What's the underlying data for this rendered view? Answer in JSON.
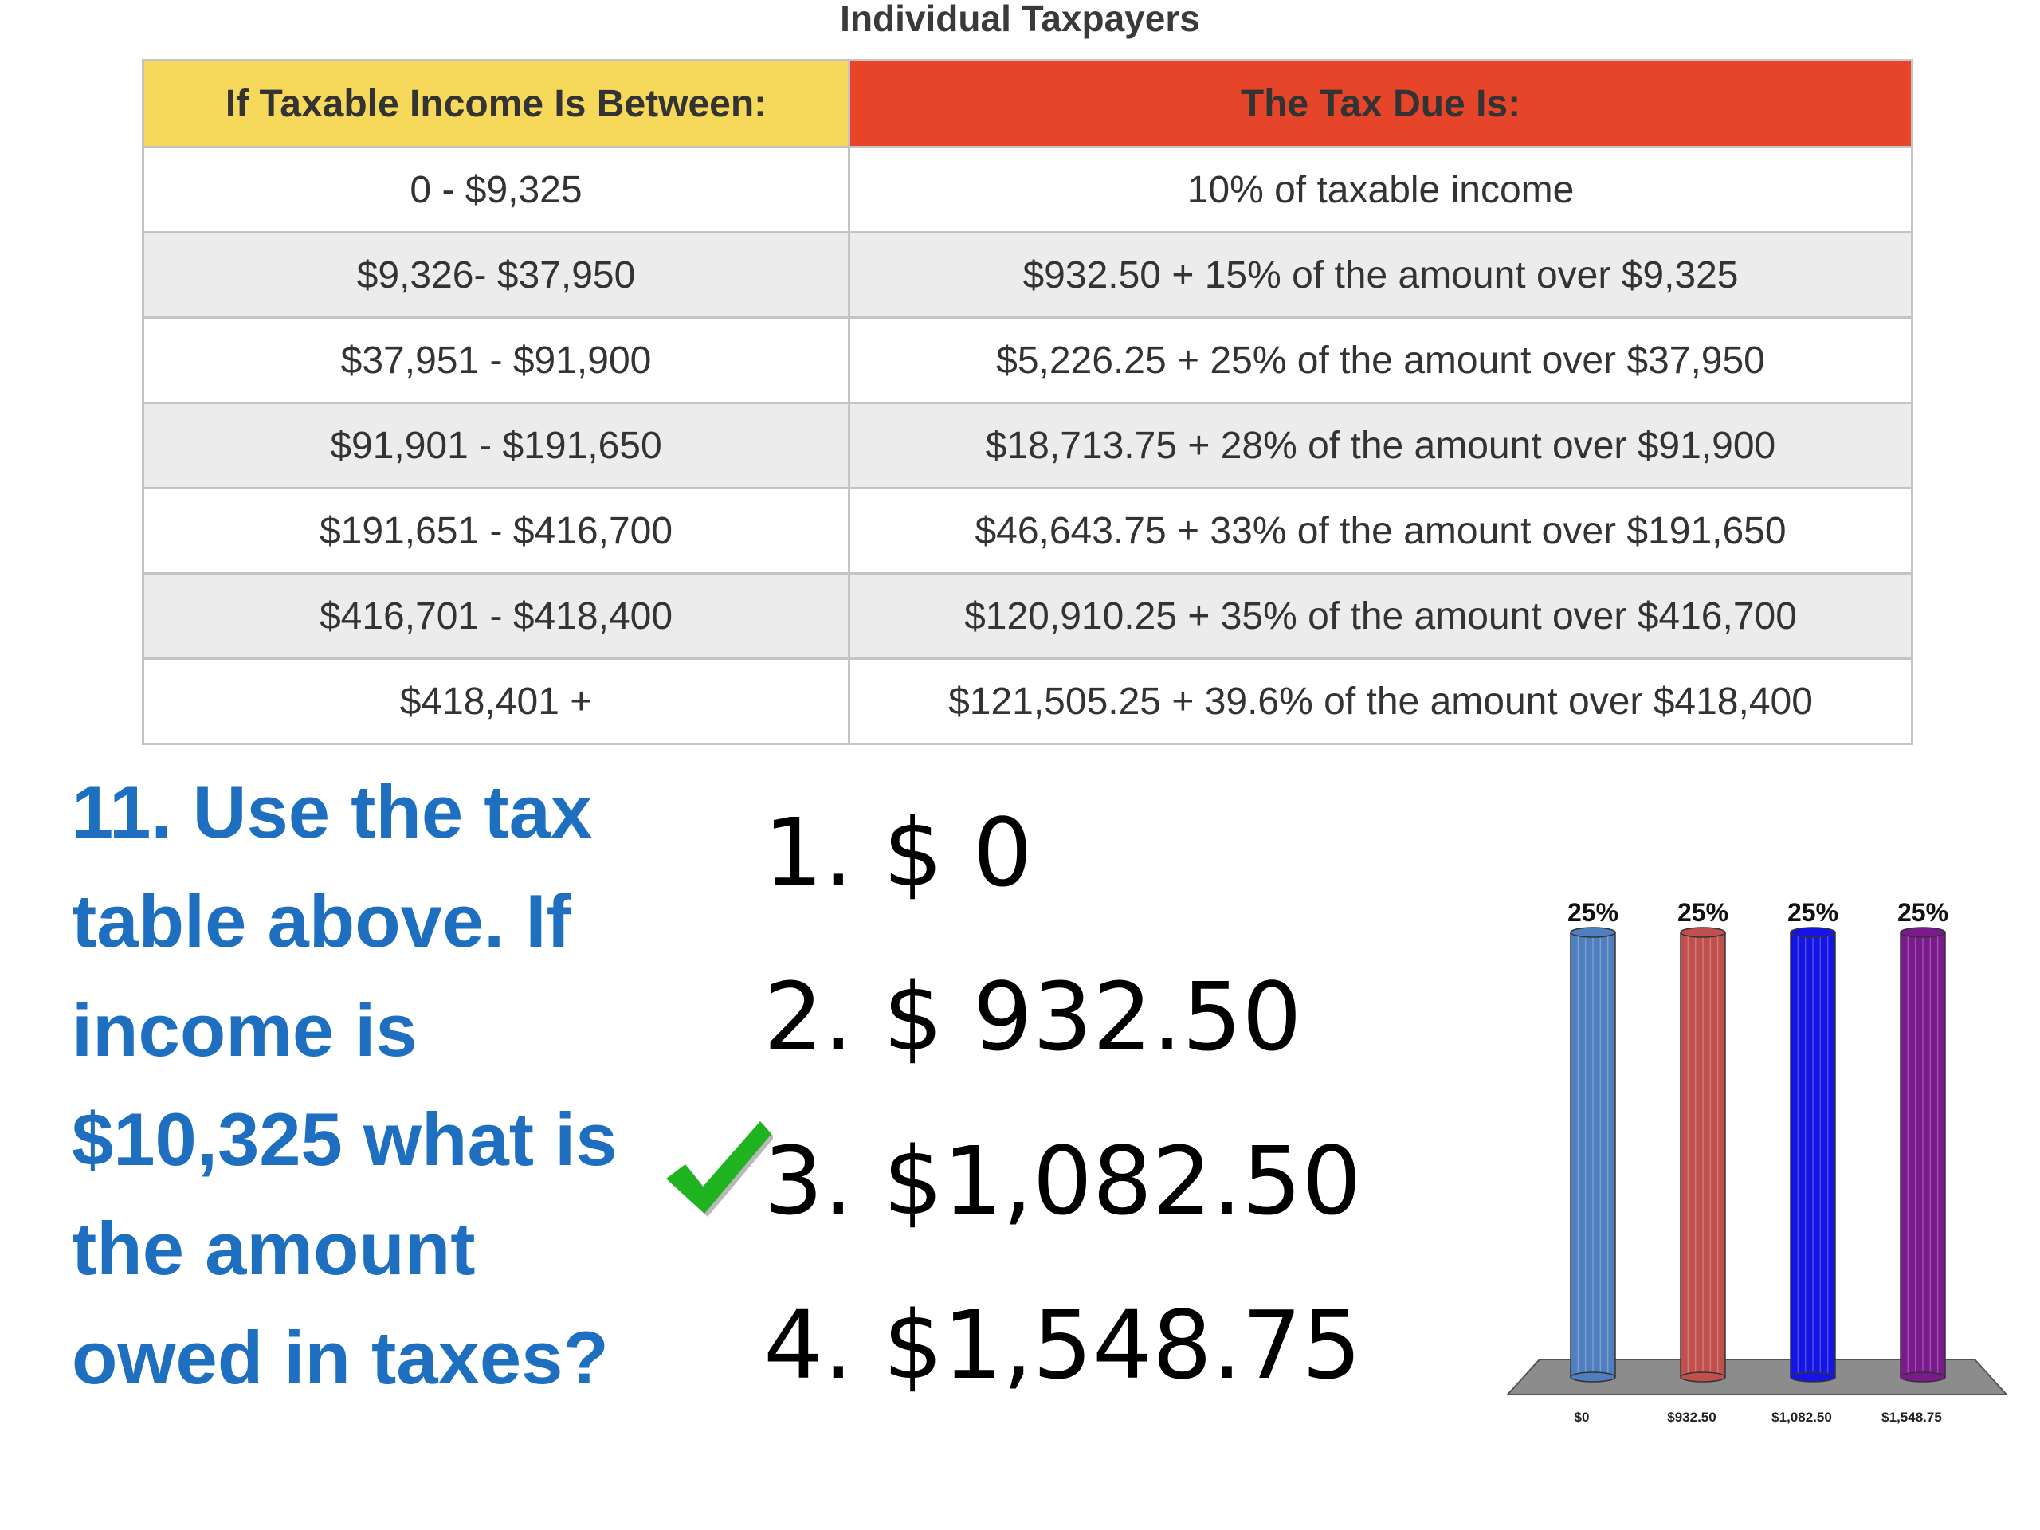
{
  "table": {
    "title": "Individual Taxpayers",
    "header_income": "If Taxable Income Is Between:",
    "header_due": "The Tax Due Is:",
    "rows": [
      {
        "income": "0 - $9,325",
        "due": "10% of taxable income"
      },
      {
        "income": "$9,326- $37,950",
        "due": "$932.50 + 15% of the amount over $9,325"
      },
      {
        "income": "$37,951 - $91,900",
        "due": "$5,226.25 + 25% of the amount over $37,950"
      },
      {
        "income": "$91,901 - $191,650",
        "due": "$18,713.75 + 28% of the amount over $91,900"
      },
      {
        "income": "$191,651 - $416,700",
        "due": "$46,643.75 + 33% of the amount over $191,650"
      },
      {
        "income": "$416,701 - $418,400",
        "due": "$120,910.25 + 35% of the amount over $416,700"
      },
      {
        "income": "$418,401 +",
        "due": "$121,505.25 + 39.6%  of the amount over $418,400"
      }
    ],
    "colors": {
      "income_header": "#f6d85a",
      "due_header": "#e7452a",
      "stripe": "#ececec"
    }
  },
  "question": {
    "lines": [
      "11. Use the tax",
      "table above. If",
      "income is",
      "$10,325 what is",
      "the amount",
      "owed in taxes?"
    ],
    "color": "#1f6fc0"
  },
  "answers": [
    {
      "label": "1. $ 0"
    },
    {
      "label": "2. $ 932.50"
    },
    {
      "label": "3. $1,082.50",
      "correct": true
    },
    {
      "label": "4. $1,548.75"
    }
  ],
  "correct_marker": {
    "icon": "checkmark-icon",
    "color": "#1fb31f"
  },
  "chart_data": {
    "type": "bar",
    "categories": [
      "$0",
      "$932.50",
      "$1,082.50",
      "$1,548.75"
    ],
    "values": [
      25,
      25,
      25,
      25
    ],
    "data_labels": [
      "25%",
      "25%",
      "25%",
      "25%"
    ],
    "colors": [
      "#4f7fbf",
      "#c0504d",
      "#1414e6",
      "#7a1a8c"
    ],
    "ylim": [
      0,
      25
    ],
    "title": "",
    "xlabel": "",
    "ylabel": "",
    "legend": "none",
    "grid": false
  }
}
